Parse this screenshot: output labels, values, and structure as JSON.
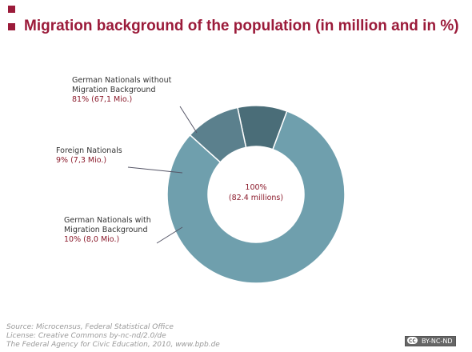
{
  "chart_data": {
    "type": "donut",
    "title": "Migration background of the population (in million and in %)",
    "categories": [
      "German Nationals without Migration Background",
      "Foreign Nationals",
      "German Nationals with Migration Background"
    ],
    "values": [
      81,
      9,
      10
    ],
    "value_labels": [
      "81% (67,1 Mio.)",
      "9% (7,3 Mio.)",
      "10% (8,0 Mio.)"
    ],
    "colors": [
      "#6f9fad",
      "#4a6d78",
      "#5b808d"
    ],
    "center_label": [
      "100%",
      "(82.4 millions)"
    ],
    "source": [
      "Source: Microcensus, Federal Statistical Office",
      "License: Creative Commons by-nc-nd/2.0/de",
      "The Federal Agency for Civic Education, 2010, www.bpb.de"
    ],
    "badge": "BY-NC-ND"
  }
}
